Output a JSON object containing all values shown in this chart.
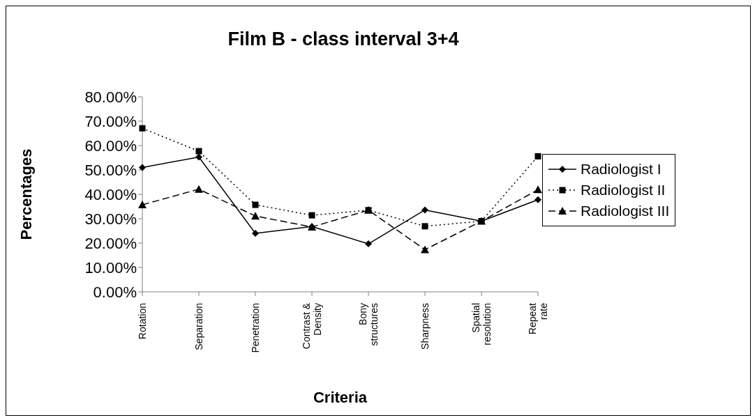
{
  "chart_data": {
    "type": "line",
    "title": "Film B - class interval 3+4",
    "xlabel": "Criteria",
    "ylabel": "Percentages",
    "categories": [
      "Rotation",
      "Separation",
      "Penetration",
      "Contrast & Density",
      "Bony structures",
      "Sharpness",
      "Spatial resolution",
      "Repeat rate"
    ],
    "series": [
      {
        "name": "Radiologist I",
        "color": "#000000",
        "marker": "diamond",
        "line_style": "solid",
        "values": [
          51.0,
          55.3,
          24.0,
          26.8,
          19.7,
          33.6,
          29.0,
          37.8
        ]
      },
      {
        "name": "Radiologist II",
        "color": "#000000",
        "marker": "square",
        "line_style": "dotted",
        "values": [
          67.1,
          57.7,
          35.7,
          31.4,
          33.5,
          26.9,
          29.0,
          55.6
        ]
      },
      {
        "name": "Radiologist III",
        "color": "#000000",
        "marker": "triangle",
        "line_style": "dashed",
        "values": [
          35.7,
          42.1,
          31.1,
          26.6,
          33.5,
          17.3,
          29.0,
          41.9
        ]
      }
    ],
    "ylim": [
      0,
      80
    ],
    "yticks": [
      {
        "value": 0,
        "label": "0.00%"
      },
      {
        "value": 10,
        "label": "10.00%"
      },
      {
        "value": 20,
        "label": "20.00%"
      },
      {
        "value": 30,
        "label": "30.00%"
      },
      {
        "value": 40,
        "label": "40.00%"
      },
      {
        "value": 50,
        "label": "50.00%"
      },
      {
        "value": 60,
        "label": "60.00%"
      },
      {
        "value": 70,
        "label": "70.00%"
      },
      {
        "value": 80,
        "label": "80.00%"
      }
    ],
    "grid": false,
    "legend": "right"
  }
}
